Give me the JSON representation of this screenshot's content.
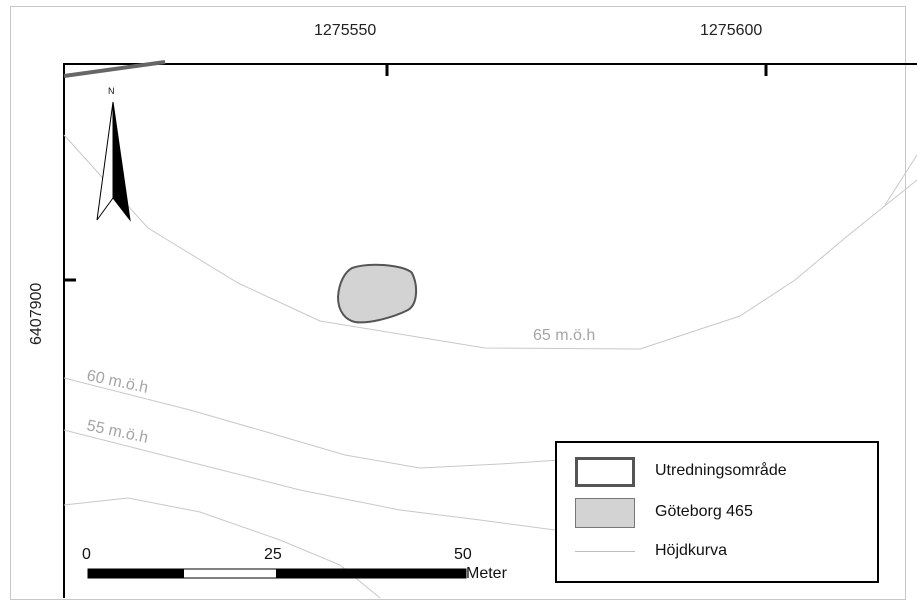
{
  "coordinates": {
    "x_labels": [
      "1275550",
      "1275600"
    ],
    "y_labels": [
      "6407900"
    ]
  },
  "north_arrow": {
    "label": "N",
    "icon": "north-arrow-icon"
  },
  "contours": [
    {
      "label": "65 m.ö.h"
    },
    {
      "label": "60 m.ö.h"
    },
    {
      "label": "55 m.ö.h"
    }
  ],
  "legend": {
    "items": [
      {
        "label": "Utredningsområde",
        "symbol": "outline-polygon"
      },
      {
        "label": "Göteborg 465",
        "symbol": "filled-polygon"
      },
      {
        "label": "Höjdkurva",
        "symbol": "line"
      }
    ]
  },
  "scale_bar": {
    "ticks": [
      "0",
      "25",
      "50"
    ],
    "unit": "Meter"
  },
  "colors": {
    "contour": "#c8c8c8",
    "site_fill": "#d3d3d3",
    "site_stroke": "#555555",
    "frame": "#000000"
  }
}
